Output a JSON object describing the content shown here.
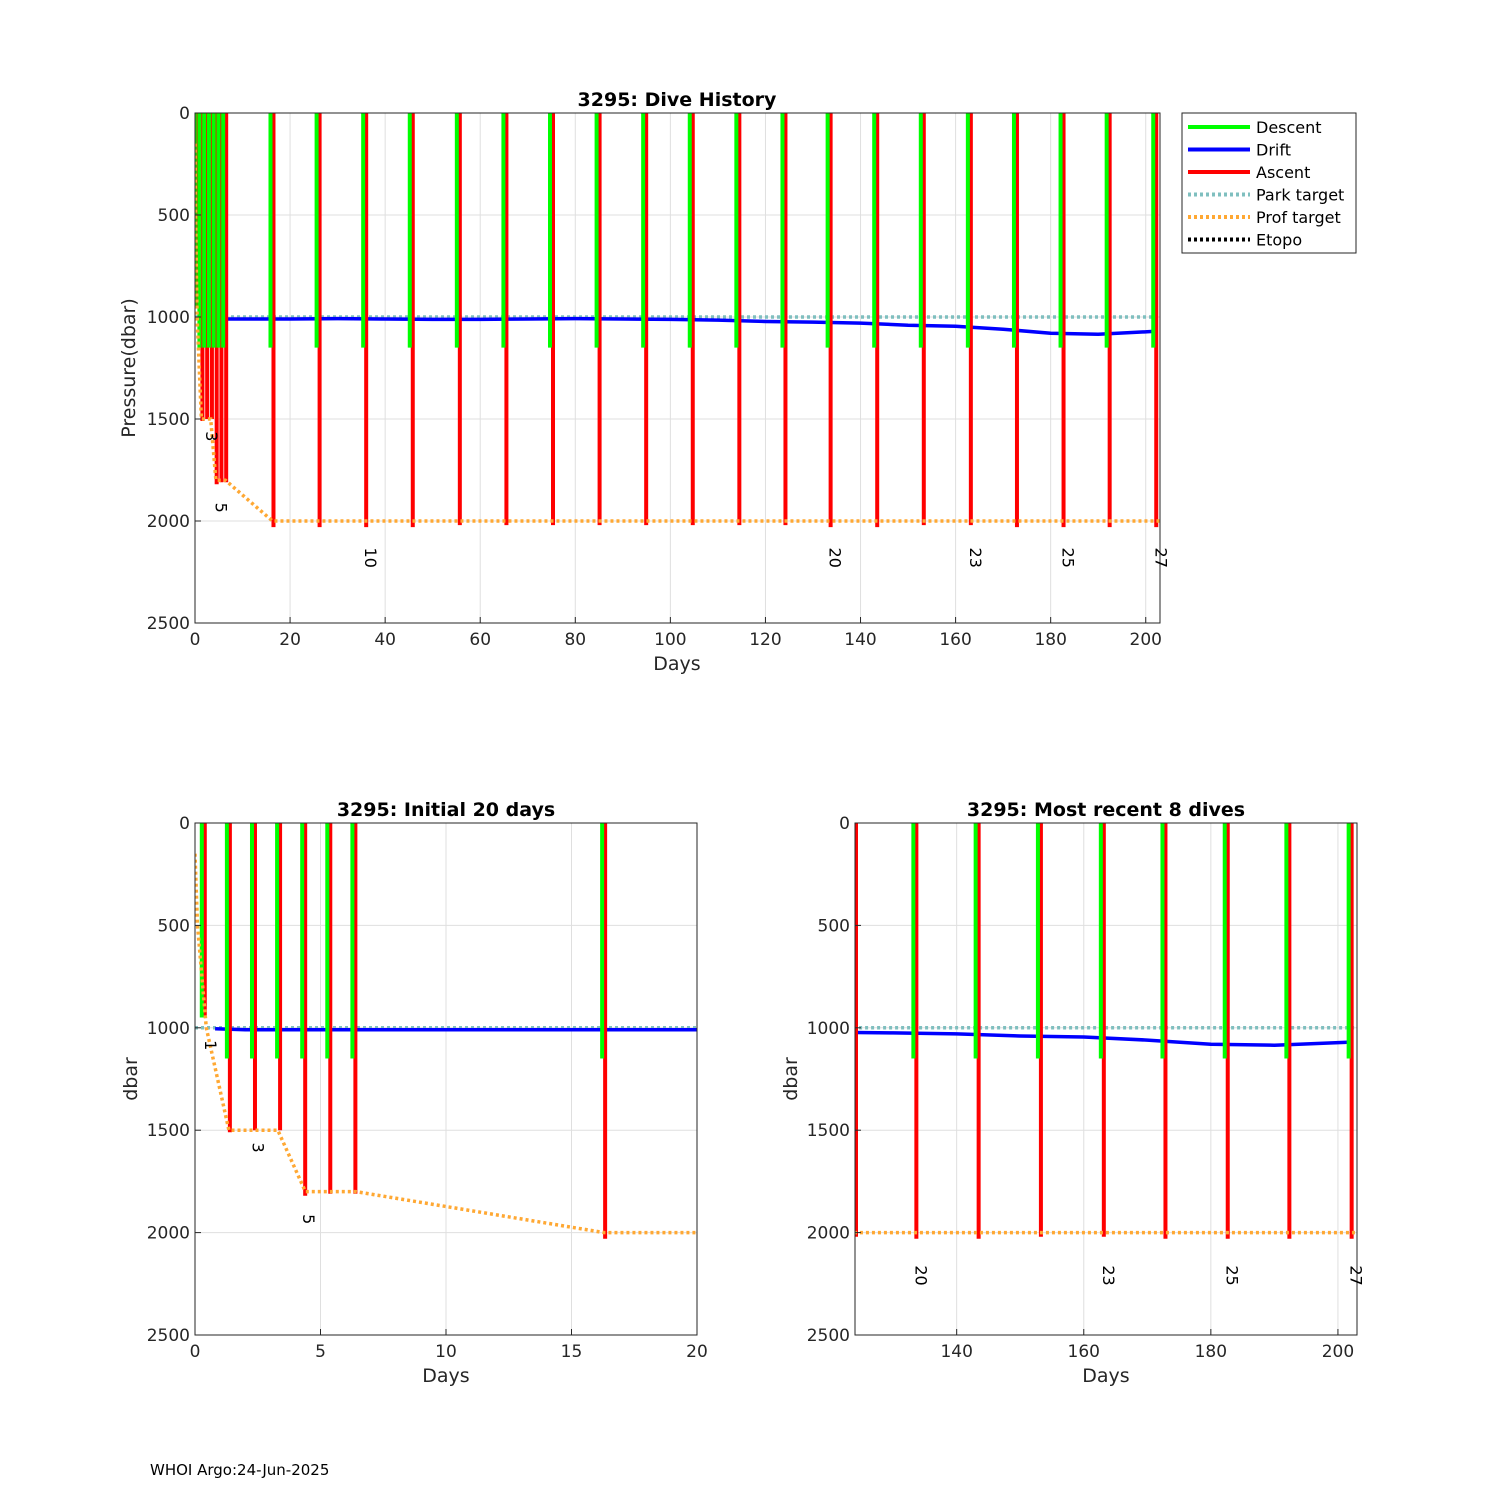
{
  "footer": "WHOI Argo:24-Jun-2025",
  "colors": {
    "descent": "#00ff00",
    "drift": "#0000ff",
    "ascent": "#ff0000",
    "park": "#7fbfbf",
    "prof": "#ffa833",
    "etopo": "#000000"
  },
  "legend": {
    "placement": "outside-top-right",
    "entries": [
      {
        "label": "Descent",
        "color": "#00ff00",
        "style": "solid"
      },
      {
        "label": "Drift",
        "color": "#0000ff",
        "style": "solid"
      },
      {
        "label": "Ascent",
        "color": "#ff0000",
        "style": "solid"
      },
      {
        "label": "Park target",
        "color": "#7fbfbf",
        "style": "dotted"
      },
      {
        "label": "Prof target",
        "color": "#ffa833",
        "style": "dotted"
      },
      {
        "label": "Etopo",
        "color": "#000000",
        "style": "dotted"
      }
    ]
  },
  "chart_data": [
    {
      "id": "history",
      "type": "line",
      "title": "3295: Dive History",
      "xlabel": "Days",
      "ylabel": "Pressure(dbar)",
      "xlim": [
        0,
        203
      ],
      "ylim": [
        0,
        2500
      ],
      "y_reversed": true,
      "grid": true,
      "xticks": [
        0,
        20,
        40,
        60,
        80,
        100,
        120,
        140,
        160,
        180,
        200
      ],
      "yticks": [
        0,
        500,
        1000,
        1500,
        2000,
        2500
      ],
      "dive_labels": [
        {
          "label": "3",
          "x": 2.3,
          "y": 1560
        },
        {
          "label": "5",
          "x": 4.3,
          "y": 1910
        },
        {
          "label": "10",
          "x": 35.8,
          "y": 2130
        },
        {
          "label": "20",
          "x": 133.5,
          "y": 2130
        },
        {
          "label": "23",
          "x": 163.0,
          "y": 2130
        },
        {
          "label": "25",
          "x": 182.5,
          "y": 2130
        },
        {
          "label": "27",
          "x": 202.0,
          "y": 2130
        }
      ]
    },
    {
      "id": "initial",
      "type": "line",
      "title": "3295: Initial 20 days",
      "xlabel": "Days",
      "ylabel": "dbar",
      "xlim": [
        0,
        20
      ],
      "ylim": [
        0,
        2500
      ],
      "y_reversed": true,
      "grid": true,
      "xticks": [
        0,
        5,
        10,
        15,
        20
      ],
      "yticks": [
        0,
        500,
        1000,
        1500,
        2000,
        2500
      ],
      "dive_labels": [
        {
          "label": "1",
          "x": 0.4,
          "y": 1060
        },
        {
          "label": "3",
          "x": 2.3,
          "y": 1560
        },
        {
          "label": "5",
          "x": 4.3,
          "y": 1910
        }
      ]
    },
    {
      "id": "recent",
      "type": "line",
      "title": "3295: Most recent 8 dives",
      "xlabel": "Days",
      "ylabel": "dbar",
      "xlim": [
        124,
        203
      ],
      "ylim": [
        0,
        2500
      ],
      "y_reversed": true,
      "grid": true,
      "xticks": [
        140,
        160,
        180,
        200
      ],
      "yticks": [
        0,
        500,
        1000,
        1500,
        2000,
        2500
      ],
      "dive_labels": [
        {
          "label": "20",
          "x": 133.5,
          "y": 2160
        },
        {
          "label": "23",
          "x": 163.0,
          "y": 2160
        },
        {
          "label": "25",
          "x": 182.5,
          "y": 2160
        },
        {
          "label": "27",
          "x": 202.0,
          "y": 2160
        }
      ]
    }
  ],
  "dives": [
    {
      "day": 0.35,
      "min": 0,
      "max": 950
    },
    {
      "day": 1.35,
      "min": 0,
      "max": 1510
    },
    {
      "day": 2.35,
      "min": 0,
      "max": 1500
    },
    {
      "day": 3.35,
      "min": 0,
      "max": 1500
    },
    {
      "day": 4.35,
      "min": 0,
      "max": 1820
    },
    {
      "day": 5.35,
      "min": 0,
      "max": 1810
    },
    {
      "day": 6.35,
      "min": 0,
      "max": 1810
    },
    {
      "day": 16.3,
      "min": 0,
      "max": 2030
    },
    {
      "day": 26.0,
      "min": 0,
      "max": 2030
    },
    {
      "day": 35.8,
      "min": 0,
      "max": 2030
    },
    {
      "day": 45.6,
      "min": 0,
      "max": 2030
    },
    {
      "day": 55.5,
      "min": 0,
      "max": 2020
    },
    {
      "day": 65.3,
      "min": 0,
      "max": 2020
    },
    {
      "day": 75.1,
      "min": 0,
      "max": 2020
    },
    {
      "day": 84.9,
      "min": 0,
      "max": 2020
    },
    {
      "day": 94.7,
      "min": 0,
      "max": 2020
    },
    {
      "day": 104.5,
      "min": 0,
      "max": 2020
    },
    {
      "day": 114.3,
      "min": 0,
      "max": 2020
    },
    {
      "day": 124.0,
      "min": 0,
      "max": 2020
    },
    {
      "day": 133.5,
      "min": 0,
      "max": 2030
    },
    {
      "day": 143.3,
      "min": 0,
      "max": 2030
    },
    {
      "day": 153.1,
      "min": 0,
      "max": 2020
    },
    {
      "day": 163.0,
      "min": 0,
      "max": 2020
    },
    {
      "day": 172.7,
      "min": 0,
      "max": 2030
    },
    {
      "day": 182.5,
      "min": 0,
      "max": 2030
    },
    {
      "day": 192.2,
      "min": 0,
      "max": 2030
    },
    {
      "day": 202.0,
      "min": 0,
      "max": 2030
    }
  ],
  "drift_series": {
    "x": [
      0.8,
      2,
      5,
      10,
      20,
      30,
      40,
      50,
      60,
      70,
      80,
      90,
      100,
      110,
      120,
      130,
      140,
      150,
      160,
      170,
      180,
      190,
      202
    ],
    "y": [
      1005,
      1010,
      1010,
      1010,
      1010,
      1008,
      1010,
      1012,
      1012,
      1010,
      1008,
      1010,
      1012,
      1015,
      1022,
      1025,
      1030,
      1040,
      1045,
      1060,
      1080,
      1085,
      1070
    ]
  },
  "park_target": {
    "x": [
      0,
      203
    ],
    "y": [
      1000,
      1000
    ]
  },
  "prof_target": {
    "x": [
      0,
      0.1,
      0.45,
      1.35,
      3.3,
      4.4,
      6.4,
      16.3,
      203
    ],
    "y": [
      150,
      500,
      1000,
      1500,
      1500,
      1800,
      1800,
      2000,
      2000
    ]
  }
}
